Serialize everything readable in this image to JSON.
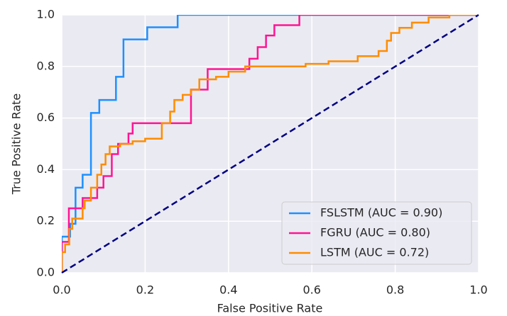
{
  "chart_data": {
    "type": "line",
    "xlabel": "False Positive Rate",
    "ylabel": "True Positive Rate",
    "xlim": [
      0,
      1
    ],
    "ylim": [
      0,
      1
    ],
    "xticks": [
      {
        "value": 0,
        "label": "0.0"
      },
      0.2,
      0.4,
      0.6,
      0.8,
      {
        "value": 1,
        "label": "1.0"
      }
    ],
    "yticks": [
      {
        "value": 0,
        "label": "0.0"
      },
      0.2,
      0.4,
      0.6,
      0.8,
      {
        "value": 1,
        "label": "1.0"
      }
    ],
    "grid": true,
    "legend": "lower right",
    "series": [
      {
        "name": "FSLSTM (AUC = 0.90)",
        "color": "#1e90ff",
        "x": [
          0,
          0,
          0.02,
          0.02,
          0.033,
          0.033,
          0.05,
          0.05,
          0.07,
          0.07,
          0.09,
          0.09,
          0.13,
          0.13,
          0.148,
          0.148,
          0.205,
          0.205,
          0.278,
          0.278,
          1
        ],
        "values": [
          0,
          0.14,
          0.14,
          0.19,
          0.19,
          0.33,
          0.33,
          0.38,
          0.38,
          0.62,
          0.62,
          0.67,
          0.67,
          0.76,
          0.76,
          0.905,
          0.905,
          0.952,
          0.952,
          1,
          1
        ]
      },
      {
        "name": "FGRU (AUC = 0.80)",
        "color": "#ff1493",
        "x": [
          0,
          0,
          0.017,
          0.017,
          0.05,
          0.05,
          0.085,
          0.085,
          0.1,
          0.1,
          0.12,
          0.12,
          0.135,
          0.135,
          0.16,
          0.16,
          0.17,
          0.17,
          0.31,
          0.31,
          0.35,
          0.35,
          0.45,
          0.45,
          0.47,
          0.47,
          0.49,
          0.49,
          0.51,
          0.51,
          0.57,
          0.57,
          1
        ],
        "values": [
          0,
          0.12,
          0.12,
          0.25,
          0.25,
          0.29,
          0.29,
          0.33,
          0.33,
          0.375,
          0.375,
          0.46,
          0.46,
          0.5,
          0.5,
          0.54,
          0.54,
          0.58,
          0.58,
          0.71,
          0.71,
          0.79,
          0.79,
          0.83,
          0.83,
          0.875,
          0.875,
          0.92,
          0.92,
          0.96,
          0.96,
          1,
          1
        ]
      },
      {
        "name": "LSTM (AUC = 0.72)",
        "color": "#ff8c00",
        "x": [
          0,
          0,
          0.008,
          0.008,
          0.018,
          0.018,
          0.025,
          0.025,
          0.05,
          0.05,
          0.055,
          0.055,
          0.07,
          0.07,
          0.085,
          0.085,
          0.095,
          0.095,
          0.105,
          0.105,
          0.115,
          0.115,
          0.14,
          0.14,
          0.17,
          0.17,
          0.2,
          0.2,
          0.24,
          0.24,
          0.26,
          0.26,
          0.27,
          0.27,
          0.29,
          0.29,
          0.31,
          0.31,
          0.33,
          0.33,
          0.37,
          0.37,
          0.4,
          0.4,
          0.44,
          0.44,
          0.585,
          0.585,
          0.64,
          0.64,
          0.71,
          0.71,
          0.76,
          0.76,
          0.78,
          0.78,
          0.79,
          0.79,
          0.81,
          0.81,
          0.84,
          0.84,
          0.88,
          0.88,
          0.93,
          0.93,
          1
        ],
        "values": [
          0,
          0.08,
          0.08,
          0.11,
          0.11,
          0.17,
          0.17,
          0.21,
          0.21,
          0.25,
          0.25,
          0.28,
          0.28,
          0.33,
          0.33,
          0.38,
          0.38,
          0.42,
          0.42,
          0.46,
          0.46,
          0.49,
          0.49,
          0.5,
          0.5,
          0.51,
          0.51,
          0.52,
          0.52,
          0.58,
          0.58,
          0.625,
          0.625,
          0.67,
          0.67,
          0.69,
          0.69,
          0.71,
          0.71,
          0.75,
          0.75,
          0.76,
          0.76,
          0.78,
          0.78,
          0.8,
          0.8,
          0.81,
          0.81,
          0.82,
          0.82,
          0.84,
          0.84,
          0.86,
          0.86,
          0.9,
          0.9,
          0.93,
          0.93,
          0.95,
          0.95,
          0.97,
          0.97,
          0.99,
          0.99,
          1,
          1
        ]
      }
    ],
    "reference_line": {
      "color": "#000080",
      "x": [
        0,
        1
      ],
      "values": [
        0,
        1
      ]
    }
  }
}
